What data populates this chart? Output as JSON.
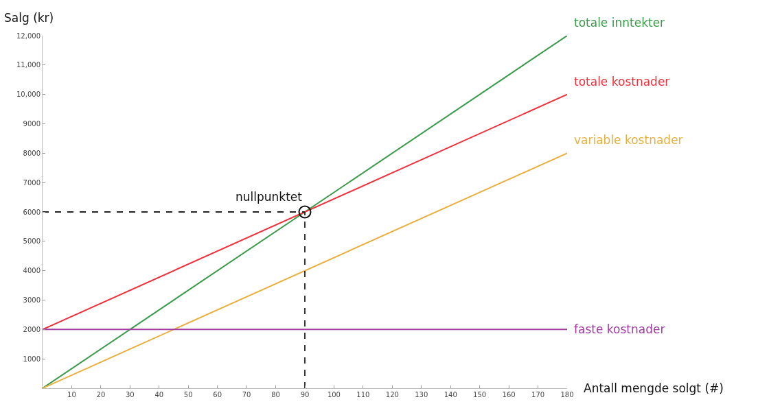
{
  "chart_data": {
    "type": "line",
    "xlabel": "Antall mengde solgt (#)",
    "ylabel": "Salg (kr)",
    "xlim": [
      0,
      180
    ],
    "ylim": [
      0,
      12000
    ],
    "xticks": [
      10,
      20,
      30,
      40,
      50,
      60,
      70,
      80,
      90,
      100,
      110,
      120,
      130,
      140,
      150,
      160,
      170,
      180
    ],
    "yticks": [
      1000,
      2000,
      3000,
      4000,
      5000,
      6000,
      7000,
      8000,
      9000,
      {
        "value": 10000,
        "label": "10,000"
      },
      {
        "value": 11000,
        "label": "11,000"
      },
      {
        "value": 12000,
        "label": "12,000"
      }
    ],
    "grid": false,
    "legend": false,
    "marker": "none",
    "line_style": "solid",
    "series": [
      {
        "name": "totale inntekter",
        "color": "#3a9a4a",
        "x": [
          0,
          180
        ],
        "values": [
          0,
          12000
        ]
      },
      {
        "name": "totale kostnader",
        "color": "#f0303a",
        "x": [
          0,
          180
        ],
        "values": [
          2000,
          10000
        ]
      },
      {
        "name": "variable kostnader",
        "color": "#e8b040",
        "x": [
          0,
          180
        ],
        "values": [
          0,
          8000
        ]
      },
      {
        "name": "faste kostnader",
        "color": "#a03ca0",
        "x": [
          0,
          180
        ],
        "values": [
          2000,
          2000
        ]
      },
      {
        "color": "#222222",
        "x": [
          0,
          90
        ],
        "values": [
          6000,
          6000
        ],
        "line_style": "dashed"
      },
      {
        "color": "#222222",
        "x": [
          90,
          90
        ],
        "values": [
          0,
          6000
        ],
        "line_style": "dashed"
      },
      {
        "type": "scatter",
        "color": "#111111",
        "x": [
          90
        ],
        "values": [
          6000
        ],
        "marker": "circle"
      }
    ],
    "annotations": [
      {
        "text": "nullpunktet",
        "x": 90,
        "y": 6000
      }
    ]
  }
}
